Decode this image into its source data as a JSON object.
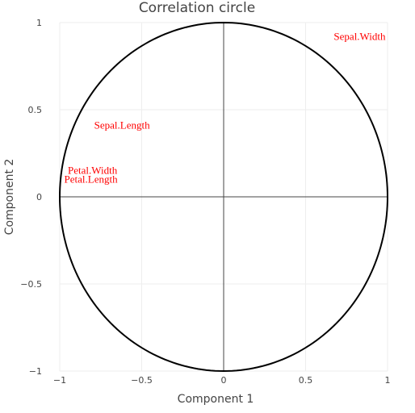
{
  "chart_data": {
    "type": "scatter",
    "title": "Correlation circle",
    "xlabel": "Component 1",
    "ylabel": "Component 2",
    "xlim": [
      -1,
      1
    ],
    "ylim": [
      -1,
      1
    ],
    "x_ticks": [
      -1,
      -0.5,
      0,
      0.5,
      1
    ],
    "y_ticks": [
      -1,
      -0.5,
      0,
      0.5,
      1
    ],
    "x_tick_labels": [
      "−1",
      "−0.5",
      "0",
      "0.5",
      "1"
    ],
    "y_tick_labels": [
      "−1",
      "−0.5",
      "0",
      "0.5",
      "1"
    ],
    "grid": true,
    "unit_circle": true,
    "zero_lines": true,
    "label_color": "#ff0000",
    "points": [
      {
        "label": "Sepal.Width",
        "x": 0.83,
        "y": 0.92
      },
      {
        "label": "Sepal.Length",
        "x": -0.62,
        "y": 0.41
      },
      {
        "label": "Petal.Width",
        "x": -0.8,
        "y": 0.15
      },
      {
        "label": "Petal.Length",
        "x": -0.81,
        "y": 0.1
      }
    ]
  }
}
